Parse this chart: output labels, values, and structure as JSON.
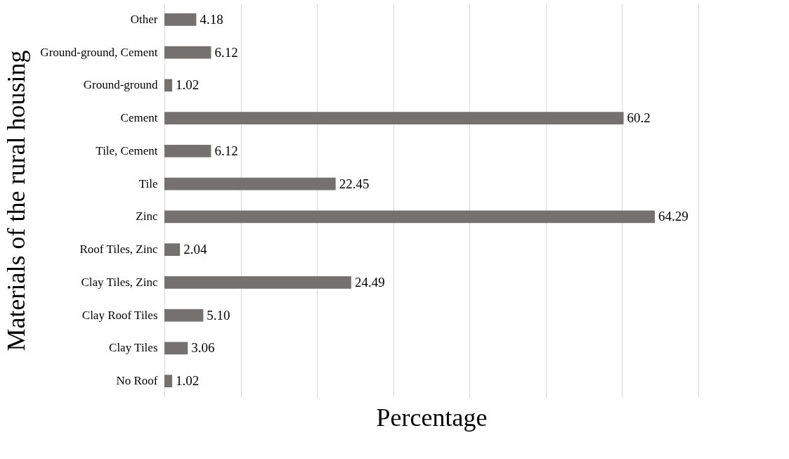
{
  "chart_data": {
    "type": "bar",
    "orientation": "horizontal",
    "xlabel": "Percentage",
    "ylabel": "Materials of the rural housing",
    "categories": [
      "Other",
      "Ground-ground, Cement",
      "Ground-ground",
      "Cement",
      "Tile, Cement",
      "Tile",
      "Zinc",
      "Roof Tiles, Zinc",
      "Clay Tiles, Zinc",
      "Clay Roof Tiles",
      "Clay Tiles",
      "No Roof"
    ],
    "values": [
      4.18,
      6.12,
      1.02,
      60.2,
      6.12,
      22.45,
      64.29,
      2.04,
      24.49,
      5.1,
      3.06,
      1.02
    ],
    "value_labels": [
      "4.18",
      "6.12",
      "1.02",
      "60.2",
      "6.12",
      "22.45",
      "64.29",
      "2.04",
      "24.49",
      "5.10",
      "3.06",
      "1.02"
    ],
    "color": "#767171",
    "xlim": [
      0,
      70
    ],
    "xticks": [
      {
        "value": 0,
        "label": null
      },
      {
        "value": 10,
        "label": null
      },
      {
        "value": 20,
        "label": null
      },
      {
        "value": 30,
        "label": null
      },
      {
        "value": 40,
        "label": null
      },
      {
        "value": 50,
        "label": null
      },
      {
        "value": 60,
        "label": null
      },
      {
        "value": 70,
        "label": null
      }
    ],
    "grid": "x",
    "tick_labels": "y"
  }
}
